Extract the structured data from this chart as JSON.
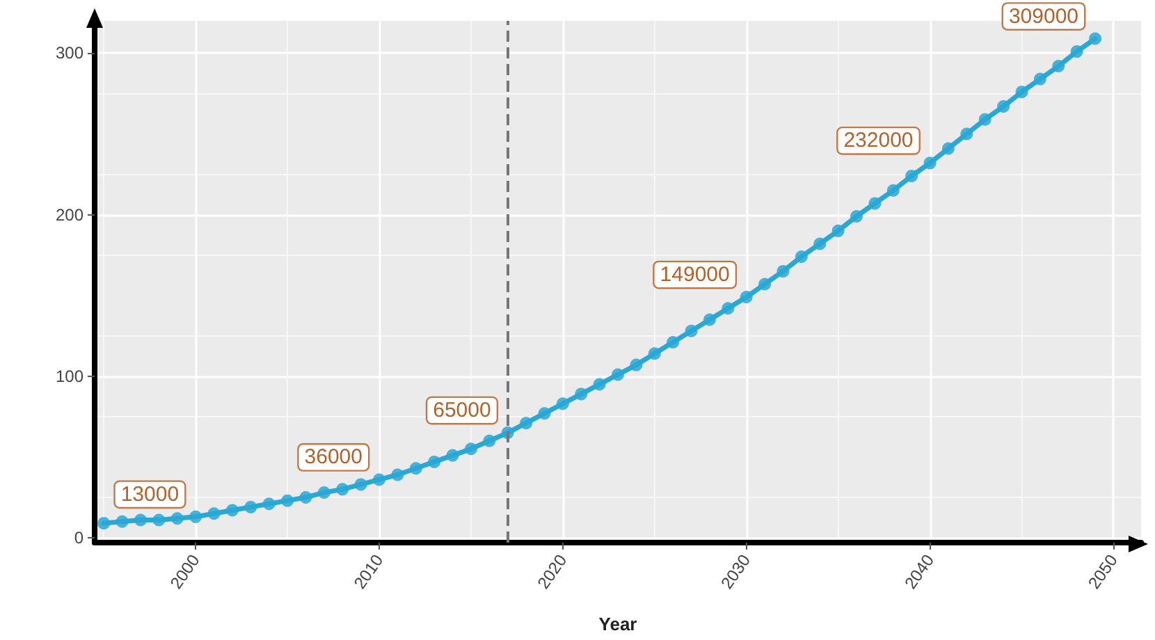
{
  "chart_data": {
    "type": "line",
    "xlabel": "Year",
    "x": [
      1995,
      1996,
      1997,
      1998,
      1999,
      2000,
      2001,
      2002,
      2003,
      2004,
      2005,
      2006,
      2007,
      2008,
      2009,
      2010,
      2011,
      2012,
      2013,
      2014,
      2015,
      2016,
      2017,
      2018,
      2019,
      2020,
      2021,
      2022,
      2023,
      2024,
      2025,
      2026,
      2027,
      2028,
      2029,
      2030,
      2031,
      2032,
      2033,
      2034,
      2035,
      2036,
      2037,
      2038,
      2039,
      2040,
      2041,
      2042,
      2043,
      2044,
      2045,
      2046,
      2047,
      2048,
      2049
    ],
    "series": [
      {
        "color": "#29a8d6",
        "values": [
          9,
          10,
          11,
          11,
          12,
          13,
          15,
          17,
          19,
          21,
          23,
          25,
          28,
          30,
          33,
          36,
          39,
          43,
          47,
          51,
          55,
          60,
          65,
          71,
          77,
          83,
          89,
          95,
          101,
          107,
          114,
          121,
          128,
          135,
          142,
          149,
          157,
          165,
          174,
          182,
          190,
          199,
          207,
          215,
          224,
          232,
          241,
          250,
          259,
          267,
          276,
          284,
          292,
          301,
          309
        ]
      }
    ],
    "annotations": [
      {
        "text": "13000",
        "x": 2000,
        "y": 13
      },
      {
        "text": "36000",
        "x": 2010,
        "y": 36
      },
      {
        "text": "65000",
        "x": 2017,
        "y": 65
      },
      {
        "text": "149000",
        "x": 2030,
        "y": 149
      },
      {
        "text": "232000",
        "x": 2040,
        "y": 232
      },
      {
        "text": "309000",
        "x": 2049,
        "y": 309
      }
    ],
    "xlim": [
      1994.5,
      2051.5
    ],
    "xticks": [
      2000,
      2010,
      2020,
      2030,
      2040,
      2050
    ],
    "ylim": [
      -3,
      320
    ],
    "yticks": [
      0,
      100,
      200,
      300
    ],
    "ref_lines": [
      {
        "axis": "x",
        "value": 2017,
        "color": "#777777",
        "line_style": "dashed"
      }
    ],
    "grid": true,
    "marker": "circle",
    "line_style": "solid"
  }
}
